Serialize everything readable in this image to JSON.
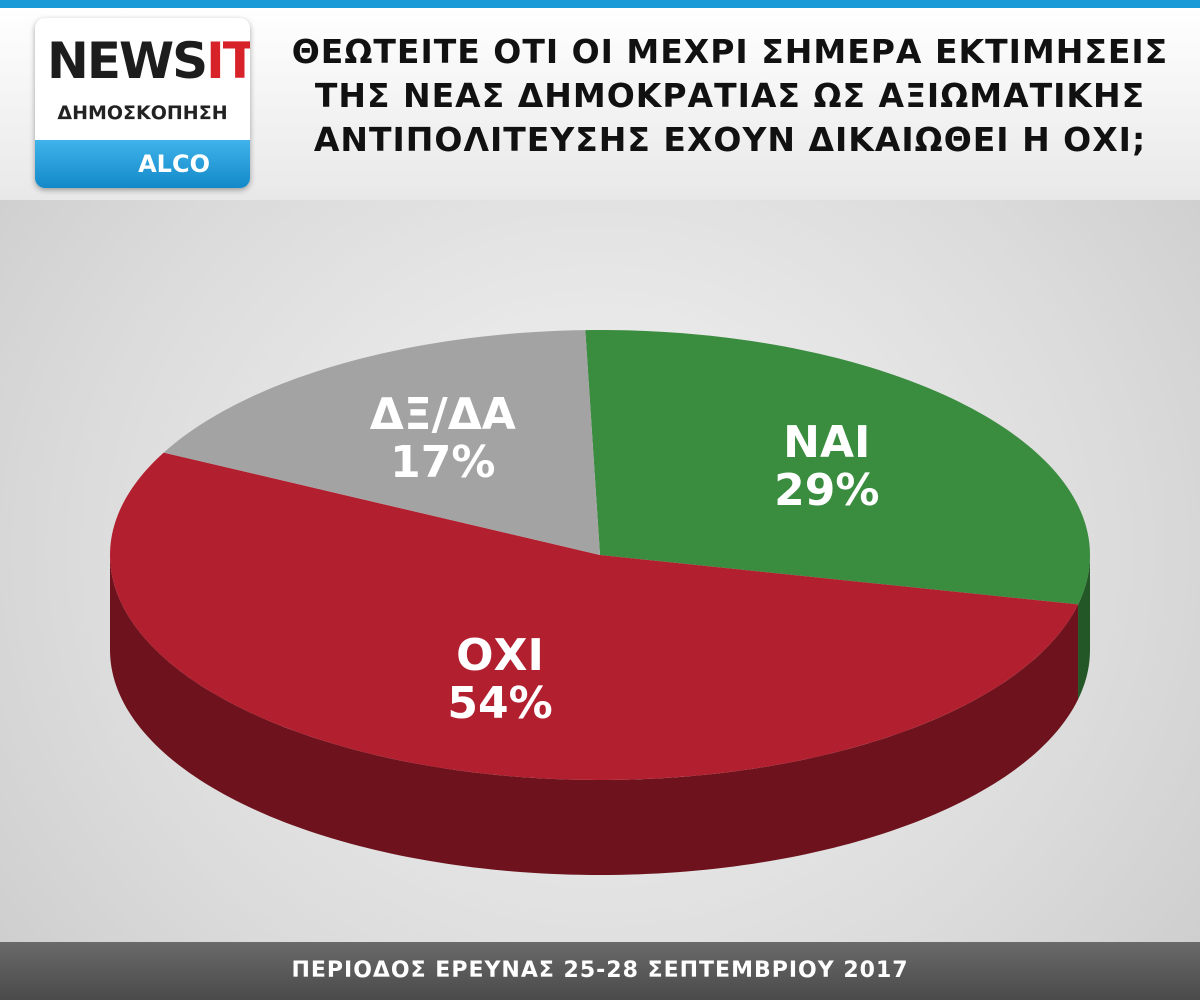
{
  "logo": {
    "brand": "NEWS",
    "brand_suffix": "IT",
    "subtitle": "ΔΗΜΟΣΚΟΠΗΣΗ",
    "pollster": "ALCO"
  },
  "chart_data": {
    "type": "pie",
    "title": "ΘΕΩΤΕΙΤΕ ΟΤΙ ΟΙ ΜΕΧΡΙ ΣΗΜΕΡΑ ΕΚΤΙΜΗΣΕΙΣ ΤΗΣ ΝΕΑΣ ΔΗΜΟΚΡΑΤΙΑΣ ΩΣ ΑΞΙΩΜΑΤΙΚΗΣ ΑΝΤΙΠΟΛΙΤΕΥΣΗΣ ΕΧΟΥΝ ΔΙΚΑΙΩΘΕΙ Η ΟΧΙ;",
    "categories": [
      "ΝΑΙ",
      "ΟΧΙ",
      "ΔΞ/ΔΑ"
    ],
    "values": [
      29,
      54,
      17
    ],
    "value_labels": [
      "29%",
      "54%",
      "17%"
    ],
    "colors": [
      "#3a8c3f",
      "#b21f2f",
      "#a3a3a3"
    ]
  },
  "footer": "ΠΕΡΙΟΔΟΣ ΕΡΕΥΝΑΣ 25-28 ΣΕΠΤΕΜΒΡΙΟΥ 2017"
}
